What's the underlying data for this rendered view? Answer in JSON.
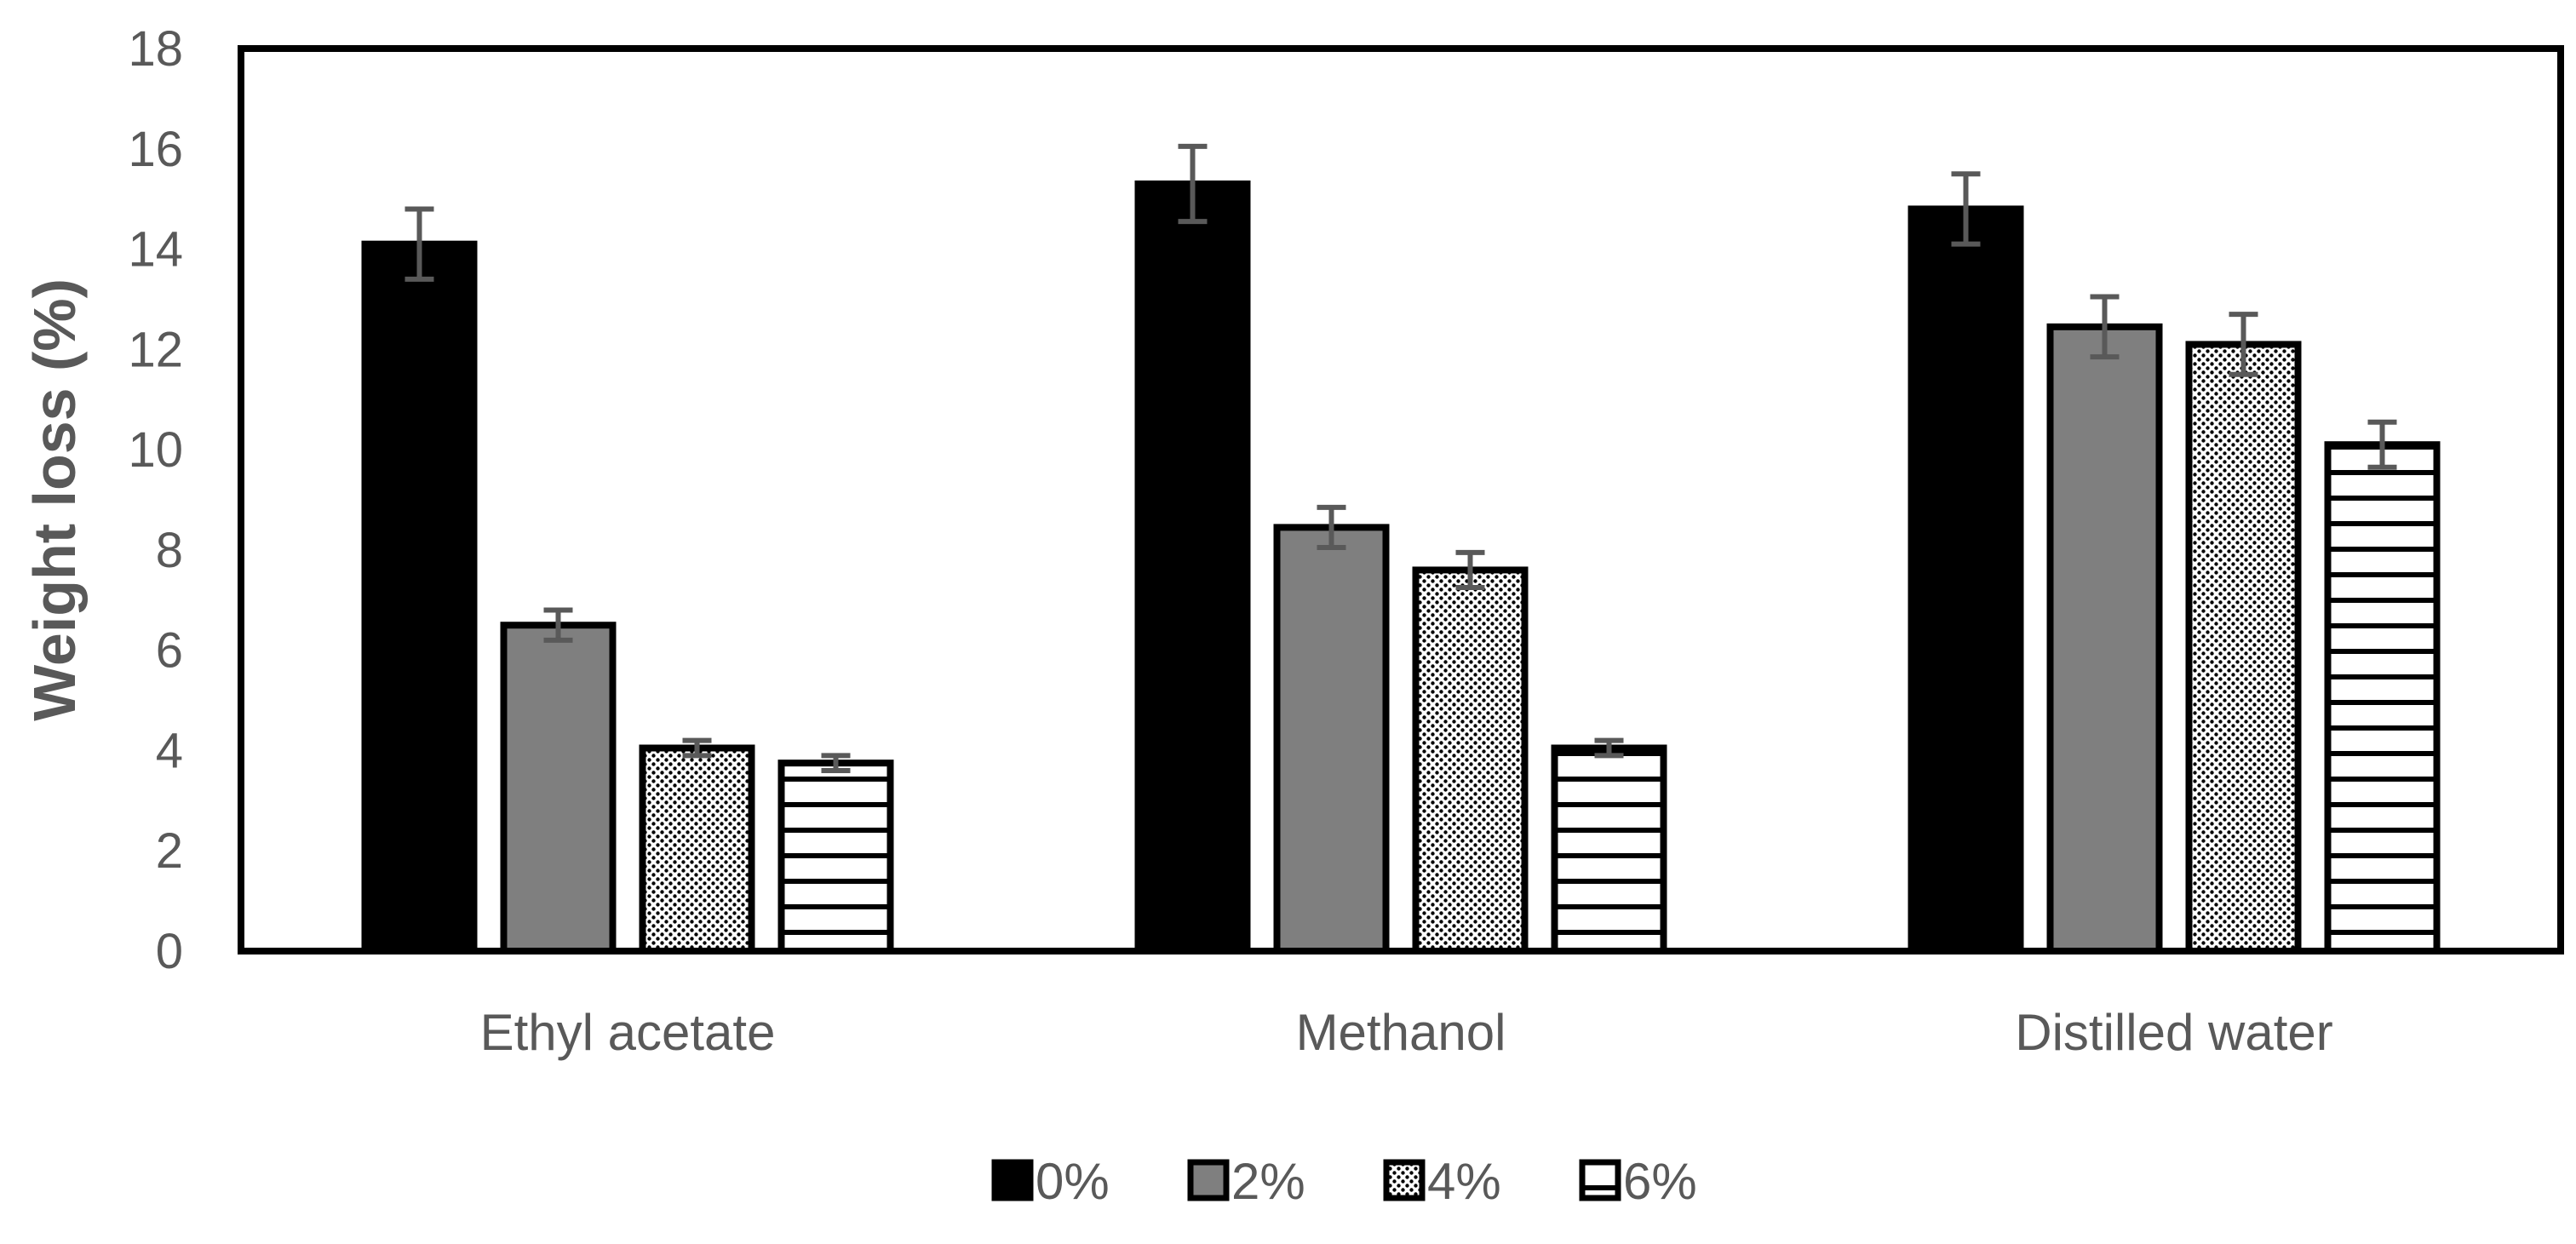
{
  "chart_data": {
    "type": "bar",
    "title": "",
    "xlabel": "",
    "ylabel": "Weight loss (%)",
    "ylim": [
      0,
      18
    ],
    "yticks": [
      0,
      2,
      4,
      6,
      8,
      10,
      12,
      14,
      16,
      18
    ],
    "grid": false,
    "legend_position": "bottom",
    "categories": [
      "Ethyl acetate",
      "Methanol",
      "Distilled water"
    ],
    "series": [
      {
        "name": "0%",
        "pattern": "solid-black",
        "color": "#000000",
        "values": [
          14.1,
          15.3,
          14.8
        ],
        "errors": [
          0.7,
          0.75,
          0.7
        ]
      },
      {
        "name": "2%",
        "pattern": "solid-gray",
        "color": "#7f7f7f",
        "values": [
          6.5,
          8.45,
          12.45
        ],
        "errors": [
          0.3,
          0.4,
          0.6
        ]
      },
      {
        "name": "4%",
        "pattern": "dotted",
        "color": "#000000",
        "values": [
          4.05,
          7.6,
          12.1
        ],
        "errors": [
          0.15,
          0.35,
          0.6
        ]
      },
      {
        "name": "6%",
        "pattern": "horizontal-stripes",
        "color": "#000000",
        "values": [
          3.75,
          4.05,
          10.1
        ],
        "errors": [
          0.15,
          0.15,
          0.45
        ]
      }
    ]
  }
}
